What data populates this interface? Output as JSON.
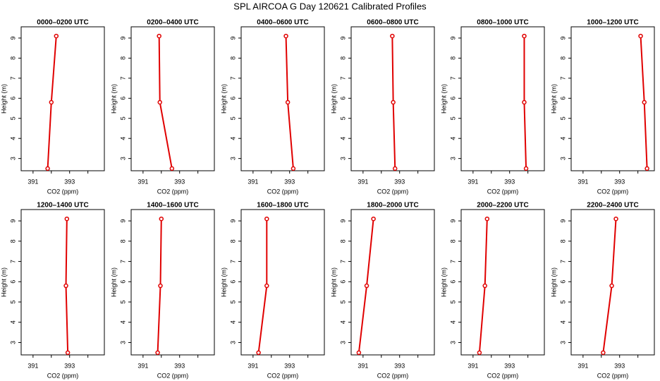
{
  "title": "SPL AIRCOA G  Day 120621  Calibrated Profiles",
  "chart_data": [
    {
      "type": "line",
      "title": "0000–0200 UTC",
      "xlabel": "CO2 (ppm)",
      "ylabel": "Height (m)",
      "x": [
        391.8,
        392.0,
        392.27
      ],
      "y": [
        2.5,
        5.8,
        9.1
      ],
      "color": "#e00000",
      "xlim": [
        390.35,
        394.9
      ],
      "ylim": [
        2.39,
        9.56
      ],
      "xticks": [
        391,
        393
      ],
      "xminor_ticks": [
        392,
        394
      ],
      "yticks": [
        3,
        4,
        5,
        6,
        7,
        8,
        9
      ]
    },
    {
      "type": "line",
      "title": "0200–0400 UTC",
      "xlabel": "CO2 (ppm)",
      "ylabel": "Height (m)",
      "x": [
        392.58,
        391.92,
        391.88
      ],
      "y": [
        2.5,
        5.8,
        9.1
      ],
      "color": "#e00000",
      "xlim": [
        390.35,
        394.9
      ],
      "ylim": [
        2.39,
        9.56
      ],
      "xticks": [
        391,
        393
      ],
      "xminor_ticks": [
        392,
        394
      ],
      "yticks": [
        3,
        4,
        5,
        6,
        7,
        8,
        9
      ]
    },
    {
      "type": "line",
      "title": "0400–0600 UTC",
      "xlabel": "CO2 (ppm)",
      "ylabel": "Height (m)",
      "x": [
        393.2,
        392.9,
        392.8
      ],
      "y": [
        2.5,
        5.8,
        9.1
      ],
      "color": "#e00000",
      "xlim": [
        390.35,
        394.9
      ],
      "ylim": [
        2.39,
        9.56
      ],
      "xticks": [
        391,
        393
      ],
      "xminor_ticks": [
        392,
        394
      ],
      "yticks": [
        3,
        4,
        5,
        6,
        7,
        8,
        9
      ]
    },
    {
      "type": "line",
      "title": "0600–0800 UTC",
      "xlabel": "CO2 (ppm)",
      "ylabel": "Height (m)",
      "x": [
        392.75,
        392.65,
        392.6
      ],
      "y": [
        2.5,
        5.8,
        9.1
      ],
      "color": "#e00000",
      "xlim": [
        390.35,
        394.9
      ],
      "ylim": [
        2.39,
        9.56
      ],
      "xticks": [
        391,
        393
      ],
      "xminor_ticks": [
        392,
        394
      ],
      "yticks": [
        3,
        4,
        5,
        6,
        7,
        8,
        9
      ]
    },
    {
      "type": "line",
      "title": "0800–1000 UTC",
      "xlabel": "CO2 (ppm)",
      "ylabel": "Height (m)",
      "x": [
        393.9,
        393.8,
        393.8
      ],
      "y": [
        2.5,
        5.8,
        9.1
      ],
      "color": "#e00000",
      "xlim": [
        390.35,
        394.9
      ],
      "ylim": [
        2.39,
        9.56
      ],
      "xticks": [
        391,
        393
      ],
      "xminor_ticks": [
        392,
        394
      ],
      "yticks": [
        3,
        4,
        5,
        6,
        7,
        8,
        9
      ]
    },
    {
      "type": "line",
      "title": "1000–1200 UTC",
      "xlabel": "CO2 (ppm)",
      "ylabel": "Height (m)",
      "x": [
        394.5,
        394.35,
        394.15
      ],
      "y": [
        2.5,
        5.8,
        9.1
      ],
      "color": "#e00000",
      "xlim": [
        390.35,
        394.9
      ],
      "ylim": [
        2.39,
        9.56
      ],
      "xticks": [
        391,
        393
      ],
      "xminor_ticks": [
        392,
        394
      ],
      "yticks": [
        3,
        4,
        5,
        6,
        7,
        8,
        9
      ]
    },
    {
      "type": "line",
      "title": "1200–1400 UTC",
      "xlabel": "CO2 (ppm)",
      "ylabel": "Height (m)",
      "x": [
        392.9,
        392.8,
        392.85
      ],
      "y": [
        2.5,
        5.8,
        9.1
      ],
      "color": "#e00000",
      "xlim": [
        390.35,
        394.9
      ],
      "ylim": [
        2.39,
        9.56
      ],
      "xticks": [
        391,
        393
      ],
      "xminor_ticks": [
        392,
        394
      ],
      "yticks": [
        3,
        4,
        5,
        6,
        7,
        8,
        9
      ]
    },
    {
      "type": "line",
      "title": "1400–1600 UTC",
      "xlabel": "CO2 (ppm)",
      "ylabel": "Height (m)",
      "x": [
        391.8,
        391.95,
        392.0
      ],
      "y": [
        2.5,
        5.8,
        9.1
      ],
      "color": "#e00000",
      "xlim": [
        390.35,
        394.9
      ],
      "ylim": [
        2.39,
        9.56
      ],
      "xticks": [
        391,
        393
      ],
      "xminor_ticks": [
        392,
        394
      ],
      "yticks": [
        3,
        4,
        5,
        6,
        7,
        8,
        9
      ]
    },
    {
      "type": "line",
      "title": "1600–1800 UTC",
      "xlabel": "CO2 (ppm)",
      "ylabel": "Height (m)",
      "x": [
        391.3,
        391.75,
        391.75
      ],
      "y": [
        2.5,
        5.8,
        9.1
      ],
      "color": "#e00000",
      "xlim": [
        390.35,
        394.9
      ],
      "ylim": [
        2.39,
        9.56
      ],
      "xticks": [
        391,
        393
      ],
      "xminor_ticks": [
        392,
        394
      ],
      "yticks": [
        3,
        4,
        5,
        6,
        7,
        8,
        9
      ]
    },
    {
      "type": "line",
      "title": "1800–2000 UTC",
      "xlabel": "CO2 (ppm)",
      "ylabel": "Height (m)",
      "x": [
        390.77,
        391.2,
        391.57
      ],
      "y": [
        2.5,
        5.8,
        9.1
      ],
      "color": "#e00000",
      "xlim": [
        390.35,
        394.9
      ],
      "ylim": [
        2.39,
        9.56
      ],
      "xticks": [
        391,
        393
      ],
      "xminor_ticks": [
        392,
        394
      ],
      "yticks": [
        3,
        4,
        5,
        6,
        7,
        8,
        9
      ]
    },
    {
      "type": "line",
      "title": "2000–2200 UTC",
      "xlabel": "CO2 (ppm)",
      "ylabel": "Height (m)",
      "x": [
        391.35,
        391.65,
        391.77
      ],
      "y": [
        2.5,
        5.8,
        9.1
      ],
      "color": "#e00000",
      "xlim": [
        390.35,
        394.9
      ],
      "ylim": [
        2.39,
        9.56
      ],
      "xticks": [
        391,
        393
      ],
      "xminor_ticks": [
        392,
        394
      ],
      "yticks": [
        3,
        4,
        5,
        6,
        7,
        8,
        9
      ]
    },
    {
      "type": "line",
      "title": "2200–2400 UTC",
      "xlabel": "CO2 (ppm)",
      "ylabel": "Height (m)",
      "x": [
        392.1,
        392.57,
        392.8
      ],
      "y": [
        2.5,
        5.8,
        9.1
      ],
      "color": "#e00000",
      "xlim": [
        390.35,
        394.9
      ],
      "ylim": [
        2.39,
        9.56
      ],
      "xticks": [
        391,
        393
      ],
      "xminor_ticks": [
        392,
        394
      ],
      "yticks": [
        3,
        4,
        5,
        6,
        7,
        8,
        9
      ]
    }
  ]
}
